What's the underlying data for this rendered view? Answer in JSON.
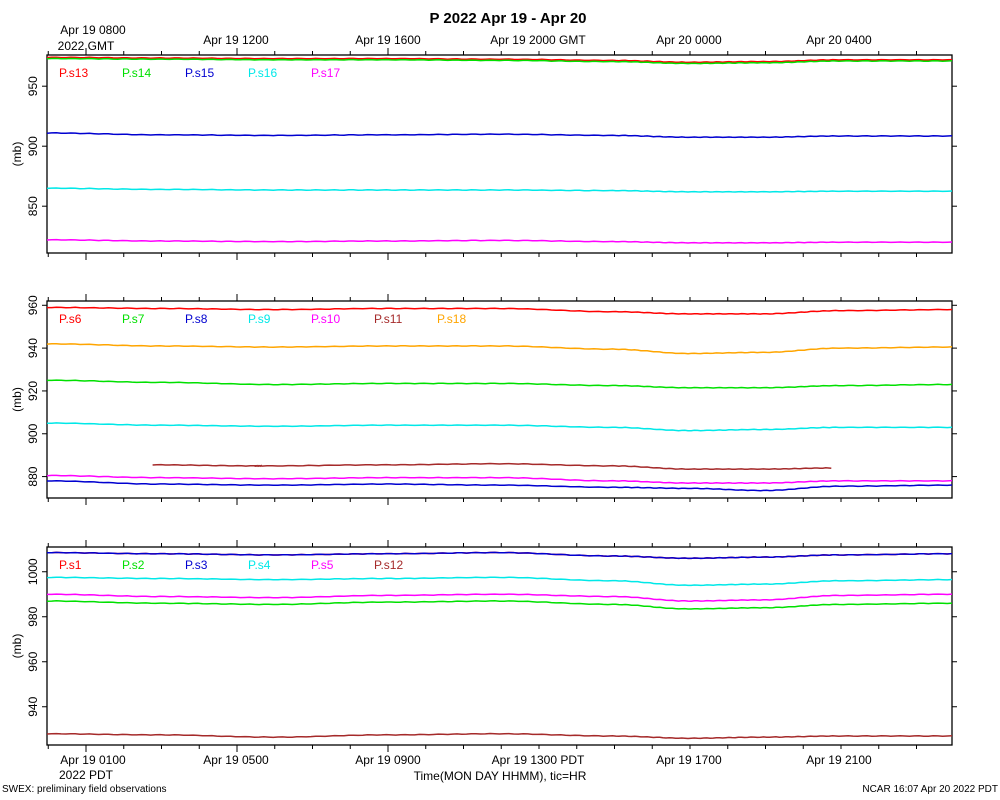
{
  "title": "P 2022 Apr 19 - Apr 20",
  "xlabel": "Time(MON DAY HHMM), tic=HR",
  "footer_left": "SWEX: preliminary field observations",
  "footer_right": "NCAR 16:07 Apr 20 2022 PDT",
  "top_axis": {
    "corner_lines": [
      "Apr 19 0800",
      "2022 GMT"
    ],
    "labels": [
      "Apr 19 1200",
      "Apr 19 1600",
      "Apr 19 2000 GMT",
      "Apr 20 0000",
      "Apr 20 0400"
    ]
  },
  "bottom_axis": {
    "corner_lines": [
      "Apr 19 0100",
      "2022 PDT"
    ],
    "labels": [
      "Apr 19 0500",
      "Apr 19 0900",
      "Apr 19 1300 PDT",
      "Apr 19 1700",
      "Apr 19 2100"
    ]
  },
  "chart_data": [
    {
      "type": "line",
      "ylabel": "(mb)",
      "ylim": [
        811,
        976
      ],
      "yticks": [
        850,
        900,
        950
      ],
      "xlim": [
        0.0,
        24.0
      ],
      "series": [
        {
          "name": "P.s13",
          "color": "#ff0000",
          "x": [
            0,
            3,
            6,
            9,
            12,
            15,
            17,
            19,
            21,
            24
          ],
          "y": [
            974,
            973.5,
            973,
            973,
            972.5,
            971.5,
            970,
            970.5,
            972,
            972
          ]
        },
        {
          "name": "P.s14",
          "color": "#00e000",
          "x": [
            0,
            3,
            6,
            9,
            12,
            15,
            17,
            19,
            21,
            24
          ],
          "y": [
            973,
            972.5,
            972,
            972,
            971.5,
            970.5,
            969,
            969.5,
            971,
            971
          ]
        },
        {
          "name": "P.s15",
          "color": "#0000d0",
          "x": [
            0,
            3,
            6,
            9,
            12,
            15,
            17,
            19,
            21,
            24
          ],
          "y": [
            911,
            909.5,
            909,
            909.5,
            910,
            909,
            907.5,
            907.5,
            908.5,
            908.5
          ]
        },
        {
          "name": "P.s16",
          "color": "#00e8e8",
          "x": [
            0,
            3,
            6,
            9,
            12,
            15,
            17,
            19,
            21,
            24
          ],
          "y": [
            865,
            864,
            863.5,
            863.5,
            863.5,
            863,
            862,
            862,
            862.5,
            862.5
          ]
        },
        {
          "name": "P.s17",
          "color": "#ff00ff",
          "x": [
            0,
            3,
            6,
            9,
            12,
            15,
            17,
            19,
            21,
            24
          ],
          "y": [
            822,
            821,
            820.5,
            821,
            821.5,
            820.5,
            819.5,
            819.5,
            820,
            820
          ]
        }
      ]
    },
    {
      "type": "line",
      "ylabel": "(mb)",
      "ylim": [
        870,
        962
      ],
      "yticks": [
        880,
        900,
        920,
        940,
        960
      ],
      "xlim": [
        0.0,
        24.0
      ],
      "series": [
        {
          "name": "P.s6",
          "color": "#ff0000",
          "x": [
            0,
            3,
            6,
            9,
            12,
            15,
            17,
            19,
            21,
            24
          ],
          "y": [
            959,
            958.5,
            958,
            958.5,
            958.5,
            957,
            956,
            956,
            957.5,
            958
          ]
        },
        {
          "name": "P.s7",
          "color": "#00e000",
          "x": [
            0,
            3,
            6,
            9,
            12,
            15,
            17,
            19,
            21,
            24
          ],
          "y": [
            925,
            924,
            923,
            923.5,
            923.5,
            922.5,
            921.5,
            921.5,
            922.5,
            923
          ]
        },
        {
          "name": "P.s8",
          "color": "#0000d0",
          "x": [
            0,
            3,
            6,
            9,
            12,
            15,
            17,
            19,
            21,
            24
          ],
          "y": [
            878,
            876.5,
            876,
            876.5,
            876,
            875,
            874.5,
            873.5,
            875.5,
            876
          ]
        },
        {
          "name": "P.s9",
          "color": "#00e8e8",
          "x": [
            0,
            3,
            6,
            9,
            12,
            15,
            17,
            19,
            21,
            24
          ],
          "y": [
            905,
            904,
            903.5,
            904,
            904,
            903,
            901.5,
            902,
            903,
            903
          ]
        },
        {
          "name": "P.s10",
          "color": "#ff00ff",
          "x": [
            0,
            3,
            6,
            9,
            12,
            15,
            17,
            19,
            21,
            24
          ],
          "y": [
            880.5,
            879.5,
            879,
            879.5,
            879.5,
            878,
            877,
            877,
            878,
            878
          ]
        },
        {
          "name": "P.s11",
          "color": "#a52a2a",
          "x": [
            2.8,
            5.5,
            5.7,
            9,
            12,
            15,
            17,
            19,
            20.8
          ],
          "y": [
            885.5,
            885,
            885,
            885.5,
            886,
            885,
            883.5,
            883.5,
            884
          ]
        },
        {
          "name": "P.s18",
          "color": "#ffa500",
          "x": [
            0,
            3,
            6,
            9,
            12,
            15,
            17,
            19,
            21,
            24
          ],
          "y": [
            942,
            941,
            940.5,
            941,
            941,
            939.5,
            937.5,
            938,
            940,
            940.5
          ]
        }
      ]
    },
    {
      "type": "line",
      "ylabel": "(mb)",
      "ylim": [
        923,
        1011
      ],
      "yticks": [
        940,
        960,
        980,
        1000
      ],
      "xlim": [
        0.0,
        24.0
      ],
      "series": [
        {
          "name": "P.s1",
          "color": "#ff0000",
          "x": [
            0,
            3,
            6,
            9,
            12,
            15,
            17,
            19,
            21,
            24
          ],
          "y": [
            1008.5,
            1008,
            1007.5,
            1008,
            1008.5,
            1007,
            1006,
            1006.5,
            1007.5,
            1008
          ]
        },
        {
          "name": "P.s2",
          "color": "#00e000",
          "x": [
            0,
            3,
            6,
            9,
            12,
            15,
            17,
            19,
            21,
            24
          ],
          "y": [
            987,
            986,
            985.5,
            986.5,
            987,
            985.5,
            983.5,
            984,
            985.5,
            986
          ]
        },
        {
          "name": "P.s3",
          "color": "#0000d0",
          "x": [
            0,
            3,
            6,
            9,
            12,
            15,
            17,
            19,
            21,
            24
          ],
          "y": [
            1008.5,
            1008,
            1007.5,
            1008,
            1008.5,
            1007,
            1006,
            1006.5,
            1007.5,
            1008
          ]
        },
        {
          "name": "P.s4",
          "color": "#00e8e8",
          "x": [
            0,
            3,
            6,
            9,
            12,
            15,
            17,
            19,
            21,
            24
          ],
          "y": [
            997.5,
            997,
            996.5,
            997,
            997.5,
            996,
            994,
            994.5,
            996,
            996.5
          ]
        },
        {
          "name": "P.s5",
          "color": "#ff00ff",
          "x": [
            0,
            3,
            6,
            9,
            12,
            15,
            17,
            19,
            21,
            24
          ],
          "y": [
            990,
            989,
            988.5,
            989.5,
            990,
            989,
            987,
            987.5,
            989.5,
            990
          ]
        },
        {
          "name": "P.s12",
          "color": "#a52a2a",
          "x": [
            0,
            3,
            6,
            9,
            12,
            15,
            17,
            19,
            21,
            24
          ],
          "y": [
            928,
            927.5,
            926.5,
            927.5,
            928,
            927,
            926,
            926.5,
            927,
            927
          ]
        }
      ]
    }
  ]
}
